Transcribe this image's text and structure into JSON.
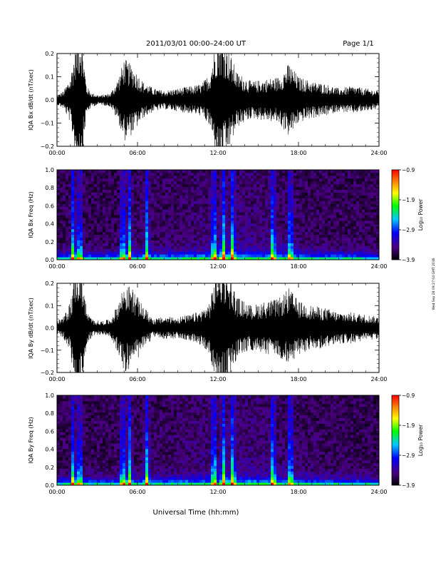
{
  "header": {
    "title": "2011/03/01   00:00–24:00 UT",
    "page": "Page 1/1"
  },
  "footer": {
    "xlabel": "Universal Time (hh:mm)",
    "side_note": "Wed Sep 28 09:27:04 GMT 2016"
  },
  "colors": {
    "trace": "#000000",
    "colormap": [
      "#000000",
      "#4b0082",
      "#0000ff",
      "#00c8ff",
      "#00ff00",
      "#ffff00",
      "#ff8c00",
      "#ff0000"
    ]
  },
  "chart_data": [
    {
      "type": "line",
      "id": "bx-trace",
      "ylabel": "IQA Bx dB/dt (nT/sec)",
      "xlim": [
        0,
        24
      ],
      "ylim": [
        -0.2,
        0.2
      ],
      "xticks": [
        "00:00",
        "06:00",
        "12:00",
        "18:00",
        "24:00"
      ],
      "yticks": [
        "−0.2",
        "−0.1",
        "0.0",
        "0.1",
        "0.2"
      ],
      "envelope_hours": [
        0,
        0.5,
        1,
        1.4,
        1.8,
        2.2,
        2.6,
        3.2,
        4,
        4.6,
        5,
        5.6,
        6.4,
        7.2,
        8,
        9,
        10,
        10.8,
        11.4,
        12,
        12.6,
        13.4,
        14.5,
        15.5,
        16.5,
        17.3,
        18,
        19,
        20,
        21,
        22,
        23,
        24
      ],
      "envelope_amplitude": [
        0.02,
        0.04,
        0.1,
        0.25,
        0.3,
        0.06,
        0.03,
        0.02,
        0.03,
        0.1,
        0.18,
        0.15,
        0.08,
        0.05,
        0.04,
        0.05,
        0.06,
        0.07,
        0.12,
        0.3,
        0.25,
        0.12,
        0.08,
        0.09,
        0.1,
        0.16,
        0.1,
        0.08,
        0.07,
        0.05,
        0.06,
        0.05,
        0.04
      ]
    },
    {
      "type": "heatmap",
      "id": "bx-spectrogram",
      "ylabel": "IQA Bx Freq (Hz)",
      "xlim": [
        0,
        24
      ],
      "ylim": [
        0,
        1.0
      ],
      "xticks": [
        "00:00",
        "06:00",
        "12:00",
        "18:00",
        "24:00"
      ],
      "yticks": [
        "0.0",
        "0.2",
        "0.4",
        "0.6",
        "0.8",
        "1.0"
      ],
      "colorbar_label": "Log₁₀ Power",
      "colorbar_ticks": [
        "−0.9",
        "−1.9",
        "−2.9",
        "−3.9"
      ],
      "zlim": [
        -3.9,
        -0.9
      ],
      "bright_streak_hours": [
        1.2,
        1.7,
        4.9,
        5.4,
        6.7,
        11.7,
        12.4,
        13.1,
        16.1,
        17.4
      ]
    },
    {
      "type": "line",
      "id": "by-trace",
      "ylabel": "IQA By dB/dt (nT/sec)",
      "xlim": [
        0,
        24
      ],
      "ylim": [
        -0.2,
        0.2
      ],
      "xticks": [
        "00:00",
        "06:00",
        "12:00",
        "18:00",
        "24:00"
      ],
      "yticks": [
        "−0.2",
        "−0.1",
        "0.0",
        "0.1",
        "0.2"
      ],
      "envelope_hours": [
        0,
        0.5,
        1,
        1.4,
        1.8,
        2.2,
        2.6,
        3.2,
        4,
        4.6,
        5,
        5.6,
        6.4,
        7.2,
        8,
        9,
        10,
        10.8,
        11.4,
        12,
        12.6,
        13.4,
        14.5,
        15.5,
        16.5,
        17.3,
        18,
        19,
        20,
        21,
        22,
        23,
        24
      ],
      "envelope_amplitude": [
        0.03,
        0.05,
        0.12,
        0.3,
        0.3,
        0.08,
        0.04,
        0.03,
        0.04,
        0.12,
        0.2,
        0.18,
        0.1,
        0.04,
        0.05,
        0.05,
        0.06,
        0.08,
        0.12,
        0.3,
        0.28,
        0.14,
        0.1,
        0.12,
        0.13,
        0.18,
        0.12,
        0.1,
        0.09,
        0.07,
        0.07,
        0.06,
        0.05
      ]
    },
    {
      "type": "heatmap",
      "id": "by-spectrogram",
      "ylabel": "IQA By Freq (Hz)",
      "xlim": [
        0,
        24
      ],
      "ylim": [
        0,
        1.0
      ],
      "xticks": [
        "00:00",
        "06:00",
        "12:00",
        "18:00",
        "24:00"
      ],
      "yticks": [
        "0.0",
        "0.2",
        "0.4",
        "0.6",
        "0.8",
        "1.0"
      ],
      "colorbar_label": "Log₁₀ Power",
      "colorbar_ticks": [
        "−0.9",
        "−1.9",
        "−2.9",
        "−3.9"
      ],
      "zlim": [
        -3.9,
        -0.9
      ],
      "bright_streak_hours": [
        1.2,
        1.7,
        4.9,
        5.4,
        6.7,
        11.7,
        12.4,
        13.1,
        16.1,
        17.4
      ]
    }
  ]
}
